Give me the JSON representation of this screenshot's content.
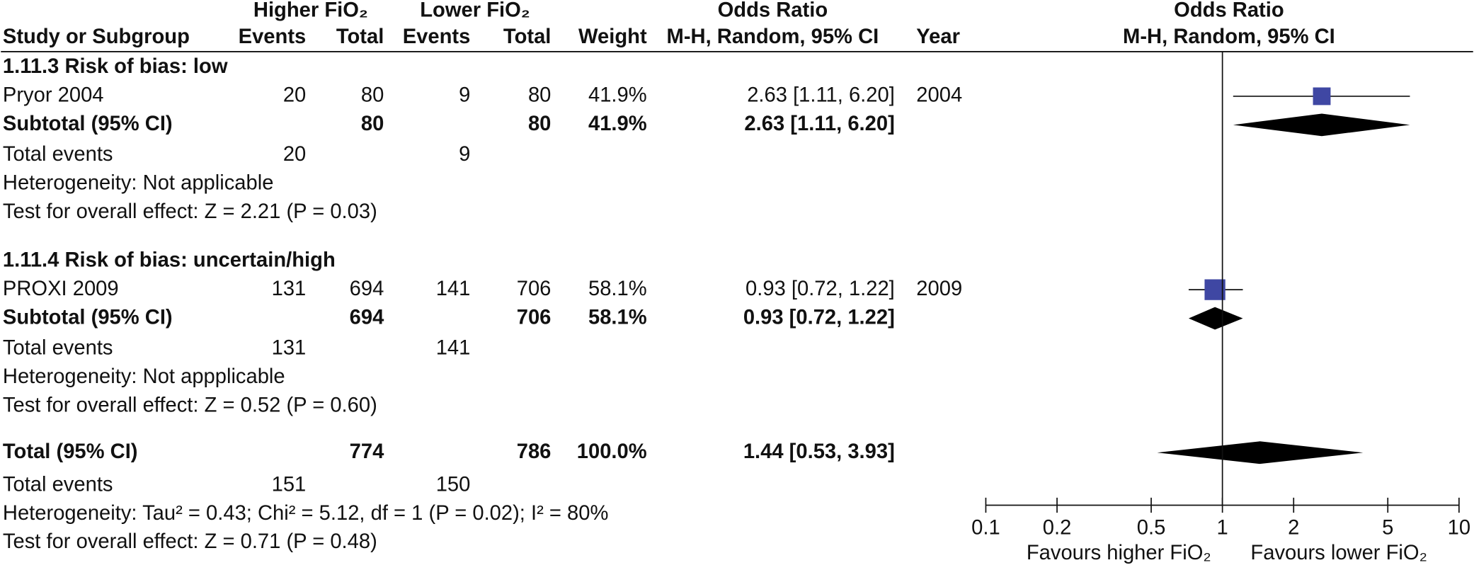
{
  "chart_data": {
    "type": "forest",
    "headers": {
      "group_higher": "Higher FiO₂",
      "group_lower": "Lower FiO₂",
      "or_title": "Odds Ratio",
      "or_method": "M-H, Random, 95% CI",
      "plot_title": "Odds Ratio",
      "plot_method": "M-H, Random, 95% CI",
      "study": "Study or Subgroup",
      "events_higher": "Events",
      "total_higher": "Total",
      "events_lower": "Events",
      "total_lower": "Total",
      "weight": "Weight",
      "year": "Year"
    },
    "subgroups": [
      {
        "title": "1.11.3 Risk of bias: low",
        "studies": [
          {
            "name": "Pryor 2004",
            "events_higher": 20,
            "total_higher": 80,
            "events_lower": 9,
            "total_lower": 80,
            "weight": 41.9,
            "weight_label": "41.9%",
            "or": 2.63,
            "ci_low": 1.11,
            "ci_high": 6.2,
            "or_label": "2.63 [1.11, 6.20]",
            "year": 2004
          }
        ],
        "subtotal": {
          "label": "Subtotal (95% CI)",
          "total_higher": 80,
          "total_lower": 80,
          "weight": "41.9%",
          "or": 2.63,
          "ci_low": 1.11,
          "ci_high": 6.2,
          "or_label": "2.63 [1.11, 6.20]"
        },
        "total_events": {
          "label": "Total events",
          "higher": 20,
          "lower": 9
        },
        "heterogeneity": "Heterogeneity: Not applicable",
        "overall_effect": "Test for overall effect: Z = 2.21 (P = 0.03)"
      },
      {
        "title": "1.11.4 Risk of bias: uncertain/high",
        "studies": [
          {
            "name": "PROXI 2009",
            "events_higher": 131,
            "total_higher": 694,
            "events_lower": 141,
            "total_lower": 706,
            "weight": 58.1,
            "weight_label": "58.1%",
            "or": 0.93,
            "ci_low": 0.72,
            "ci_high": 1.22,
            "or_label": "0.93 [0.72, 1.22]",
            "year": 2009
          }
        ],
        "subtotal": {
          "label": "Subtotal (95% CI)",
          "total_higher": 694,
          "total_lower": 706,
          "weight": "58.1%",
          "or": 0.93,
          "ci_low": 0.72,
          "ci_high": 1.22,
          "or_label": "0.93 [0.72, 1.22]"
        },
        "total_events": {
          "label": "Total events",
          "higher": 131,
          "lower": 141
        },
        "heterogeneity": "Heterogeneity: Not appplicable",
        "overall_effect": "Test for overall effect: Z = 0.52 (P = 0.60)"
      }
    ],
    "total": {
      "label": "Total (95% CI)",
      "total_higher": 774,
      "total_lower": 786,
      "weight": "100.0%",
      "or": 1.44,
      "ci_low": 0.53,
      "ci_high": 3.93,
      "or_label": "1.44 [0.53, 3.93]"
    },
    "total_events": {
      "label": "Total events",
      "higher": 151,
      "lower": 150
    },
    "heterogeneity": "Heterogeneity: Tau² = 0.43; Chi² = 5.12, df = 1 (P = 0.02); I² = 80%",
    "overall_effect": "Test for overall effect: Z = 0.71 (P = 0.48)",
    "xscale": "log",
    "xlim": [
      0.1,
      10
    ],
    "xticks": [
      0.1,
      0.2,
      0.5,
      1,
      2,
      5,
      10
    ],
    "favours_left": "Favours higher FiO₂",
    "favours_right": "Favours lower FiO₂",
    "color": "#3f47a3"
  }
}
